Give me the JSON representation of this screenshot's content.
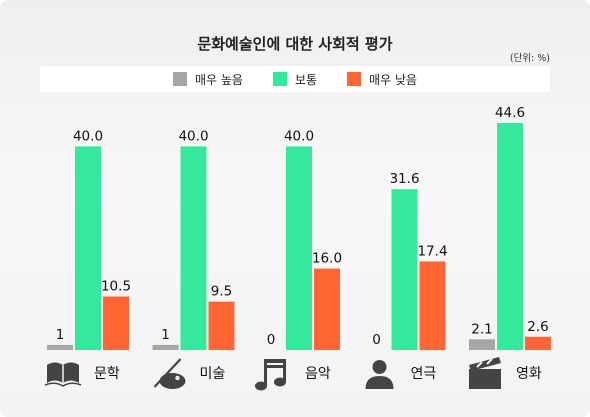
{
  "chart_data": {
    "type": "bar",
    "title": "문화예술인에 대한 사회적 평가",
    "unit": "(단위: %)",
    "categories": [
      "문학",
      "미술",
      "음악",
      "연극",
      "영화"
    ],
    "category_icons": [
      "book-icon",
      "palette-icon",
      "music-note-icon",
      "person-icon",
      "clapperboard-icon"
    ],
    "series": [
      {
        "name": "매우 높음",
        "color": "#a6a6a6",
        "values": [
          1,
          1,
          0,
          0,
          2.1
        ],
        "labels": [
          "1",
          "1",
          "0",
          "0",
          "2.1"
        ]
      },
      {
        "name": "보통",
        "color": "#36e89c",
        "values": [
          40.0,
          40.0,
          40.0,
          31.6,
          44.6
        ],
        "labels": [
          "40.0",
          "40.0",
          "40.0",
          "31.6",
          "44.6"
        ]
      },
      {
        "name": "매우 낮음",
        "color": "#ff6633",
        "values": [
          10.5,
          9.5,
          16.0,
          17.4,
          2.6
        ],
        "labels": [
          "10.5",
          "9.5",
          "16.0",
          "17.4",
          "2.6"
        ]
      }
    ],
    "legend_position": "top",
    "grid": false
  },
  "colors": {
    "icon": "#444444"
  }
}
